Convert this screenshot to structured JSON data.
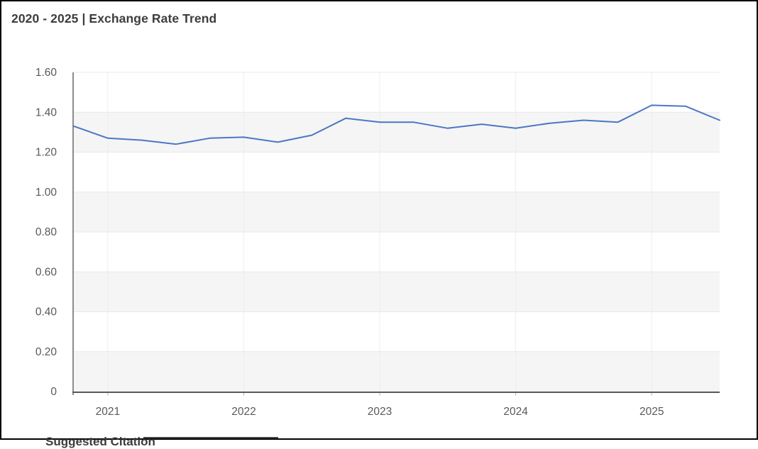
{
  "header": {
    "title": "2020 - 2025 | Exchange Rate Trend"
  },
  "footer": {
    "section_title": "Suggested Citation"
  },
  "colors": {
    "title_text": "#3d3d3d",
    "axis_label_text": "#595959",
    "line": "#4a77c4",
    "band_fill": "#f5f5f5",
    "h_gridline": "#e8e8e8",
    "v_gridline": "#ededed",
    "y_axis": "#8c8c8c",
    "x_axis": "#595959",
    "tick": "#b5b5b5"
  },
  "chart_data": {
    "type": "line",
    "title": "2020 - 2025 | Exchange Rate Trend",
    "xlabel": "",
    "ylabel": "",
    "legend": "none",
    "grid": "alternating horizontal bands, faint year gridlines",
    "xlim": [
      2020.75,
      2025.5
    ],
    "ylim": [
      0,
      1.6
    ],
    "x_ticks": [
      {
        "label": "2021",
        "value": 2021
      },
      {
        "label": "2022",
        "value": 2022
      },
      {
        "label": "2023",
        "value": 2023
      },
      {
        "label": "2024",
        "value": 2024
      },
      {
        "label": "2025",
        "value": 2025
      }
    ],
    "y_ticks": [
      {
        "label": "1.60",
        "value": 1.6
      },
      {
        "label": "1.40",
        "value": 1.4
      },
      {
        "label": "1.20",
        "value": 1.2
      },
      {
        "label": "1.00",
        "value": 1.0
      },
      {
        "label": "0.80",
        "value": 0.8
      },
      {
        "label": "0.60",
        "value": 0.6
      },
      {
        "label": "0.40",
        "value": 0.4
      },
      {
        "label": "0.20",
        "value": 0.2
      },
      {
        "label": "0",
        "value": 0
      }
    ],
    "x": [
      2020.75,
      2021.0,
      2021.25,
      2021.5,
      2021.75,
      2022.0,
      2022.25,
      2022.5,
      2022.75,
      2023.0,
      2023.25,
      2023.5,
      2023.75,
      2024.0,
      2024.25,
      2024.5,
      2024.75,
      2025.0,
      2025.25,
      2025.5
    ],
    "series": [
      {
        "name": "Exchange Rate",
        "values": [
          1.33,
          1.27,
          1.26,
          1.24,
          1.27,
          1.275,
          1.25,
          1.285,
          1.37,
          1.35,
          1.35,
          1.32,
          1.34,
          1.32,
          1.345,
          1.36,
          1.35,
          1.435,
          1.43,
          1.36
        ]
      }
    ]
  }
}
